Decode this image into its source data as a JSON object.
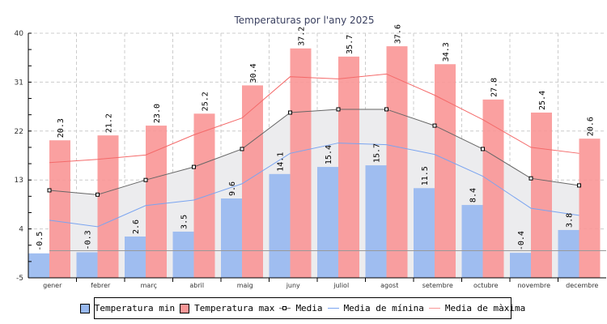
{
  "chart_data": {
    "type": "bar",
    "title": "Temperaturas por l'any 2025",
    "categories": [
      "gener",
      "febrer",
      "març",
      "abril",
      "maig",
      "juny",
      "juliol",
      "agost",
      "setembre",
      "octubre",
      "novembre",
      "decembre"
    ],
    "ylim": [
      -5,
      40
    ],
    "yticks": [
      40,
      31,
      22,
      13,
      4,
      -5
    ],
    "grid": true,
    "legend_placement": "bottom",
    "series": [
      {
        "name": "Temperatura min",
        "type": "bar",
        "color": "#97b8ef",
        "values": [
          -0.5,
          -0.3,
          2.6,
          3.5,
          9.6,
          14.1,
          15.4,
          15.7,
          11.5,
          8.4,
          -0.4,
          3.8
        ]
      },
      {
        "name": "Temperatura max",
        "type": "bar",
        "color": "#f99696",
        "values": [
          20.3,
          21.2,
          23.0,
          25.2,
          30.4,
          37.2,
          35.7,
          37.6,
          34.3,
          27.8,
          25.4,
          20.6
        ]
      },
      {
        "name": "Media",
        "type": "line",
        "color": "#666666",
        "values": [
          11.1,
          10.3,
          13.0,
          15.4,
          18.7,
          25.4,
          26.0,
          26.0,
          23.0,
          18.7,
          13.3,
          12.0
        ]
      },
      {
        "name": "Media de mínina",
        "type": "line",
        "color": "#7aa4f0",
        "values": [
          5.6,
          4.4,
          8.3,
          9.3,
          12.3,
          17.9,
          19.8,
          19.5,
          17.7,
          13.7,
          7.8,
          6.5
        ]
      },
      {
        "name": "Media de màxima",
        "type": "line",
        "color": "#f46a6a",
        "values": [
          16.2,
          16.8,
          17.6,
          21.3,
          24.4,
          32.0,
          31.6,
          32.5,
          28.6,
          24.1,
          19.0,
          17.9
        ]
      }
    ]
  }
}
